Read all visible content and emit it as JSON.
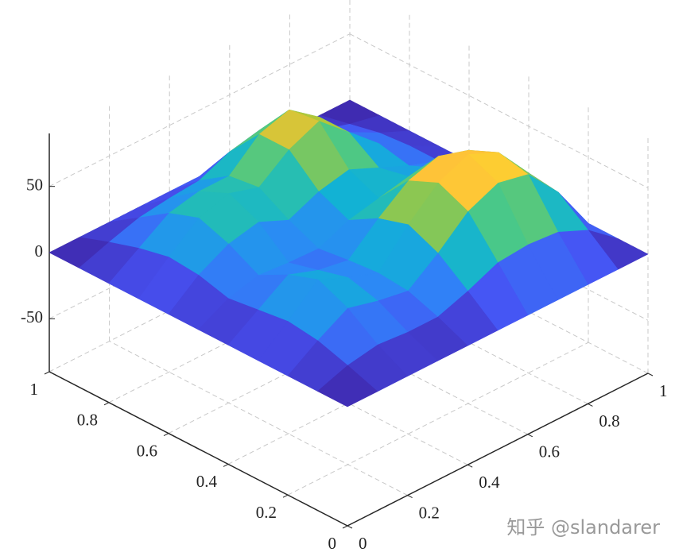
{
  "chart_data": {
    "type": "surface",
    "x": [
      0,
      0.1,
      0.2,
      0.3,
      0.4,
      0.5,
      0.6,
      0.7,
      0.8,
      0.9,
      1
    ],
    "y": [
      0,
      0.1,
      0.2,
      0.3,
      0.4,
      0.5,
      0.6,
      0.7,
      0.8,
      0.9,
      1
    ],
    "z": [
      [
        0,
        0,
        0,
        0,
        0,
        0,
        0,
        0,
        0,
        0,
        0
      ],
      [
        0,
        8,
        12,
        10,
        10,
        18,
        28,
        30,
        28,
        18,
        0
      ],
      [
        0,
        15,
        28,
        22,
        18,
        35,
        55,
        65,
        60,
        35,
        0
      ],
      [
        0,
        18,
        38,
        28,
        20,
        45,
        65,
        75,
        65,
        38,
        0
      ],
      [
        0,
        15,
        30,
        22,
        18,
        38,
        55,
        62,
        55,
        32,
        0
      ],
      [
        0,
        12,
        18,
        16,
        15,
        25,
        30,
        35,
        30,
        20,
        0
      ],
      [
        0,
        18,
        30,
        35,
        25,
        35,
        40,
        30,
        20,
        12,
        0
      ],
      [
        0,
        20,
        38,
        45,
        38,
        55,
        65,
        45,
        25,
        12,
        0
      ],
      [
        0,
        15,
        30,
        35,
        35,
        55,
        62,
        45,
        22,
        10,
        0
      ],
      [
        0,
        8,
        15,
        18,
        20,
        30,
        35,
        25,
        12,
        5,
        0
      ],
      [
        0,
        0,
        0,
        0,
        0,
        0,
        0,
        0,
        0,
        0,
        0
      ]
    ],
    "xlim": [
      0,
      1
    ],
    "ylim": [
      0,
      1
    ],
    "zlim": [
      -90,
      90
    ],
    "xticks": [
      0,
      0.2,
      0.4,
      0.6,
      0.8,
      1
    ],
    "yticks": [
      0,
      0.2,
      0.4,
      0.6,
      0.8,
      1
    ],
    "zticks": [
      -50,
      0,
      50
    ],
    "grid": true,
    "colormap": [
      "#3e26a8",
      "#4752f4",
      "#2d87f7",
      "#11b1d6",
      "#37c897",
      "#abc739",
      "#fec338",
      "#f9fb15"
    ]
  },
  "watermark": "知乎 @slandarer"
}
